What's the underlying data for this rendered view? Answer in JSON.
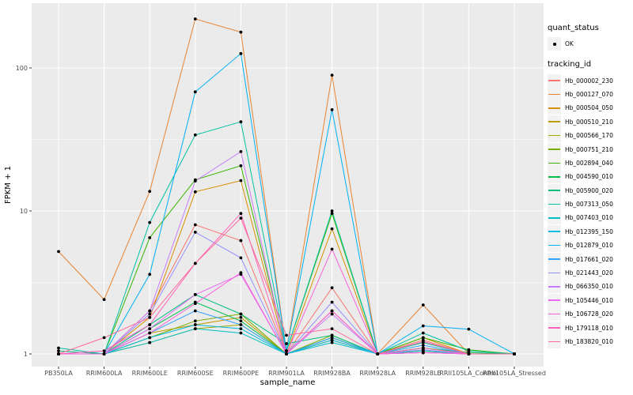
{
  "figure": {
    "background": "#FFFFFF",
    "panel_background": "#EBEBEB",
    "grid_major_color": "#FFFFFF",
    "grid_minor_color": "#FFFFFF",
    "tick_color": "#333333",
    "tick_label_color": "#4D4D4D",
    "axis_title_color": "#000000",
    "point_color": "#000000"
  },
  "legend": {
    "quant_status": {
      "title": "quant_status",
      "items": [
        {
          "label": "OK",
          "marker": "point"
        }
      ]
    },
    "tracking_id": {
      "title": "tracking_id"
    }
  },
  "chart_data": {
    "type": "line",
    "title": "",
    "xlabel": "sample_name",
    "ylabel": "FPKM + 1",
    "y_scale": "log10",
    "y_ticks": [
      1,
      10,
      100
    ],
    "y_tick_labels": [
      "1",
      "10",
      "100"
    ],
    "y_minor": [
      3.162,
      31.62
    ],
    "ylim": [
      0.82,
      285
    ],
    "grid": true,
    "legend_position": "right",
    "marker": "black point (quant_status OK) on every observation",
    "categories": [
      "PB350LA",
      "RRIM600LA",
      "RRIM600LE",
      "RRIM600SE",
      "RRIM600PE",
      "RRIM901LA",
      "RRIM928BA",
      "RRIM928LA",
      "RRIM928LE",
      "RRII105LA_Control",
      "RRII105LA_Stressed"
    ],
    "series": [
      {
        "name": "Hb_000002_230",
        "color": "#F8766D",
        "values": [
          1.0,
          1.0,
          2.0,
          8.0,
          6.2,
          1.0,
          2.9,
          1.0,
          1.25,
          1.0,
          1.0
        ]
      },
      {
        "name": "Hb_000127_070",
        "color": "#EA8331",
        "values": [
          5.2,
          2.4,
          13.7,
          220,
          178,
          1.05,
          89,
          1.0,
          2.2,
          1.0,
          1.0
        ]
      },
      {
        "name": "Hb_000504_050",
        "color": "#D89000",
        "values": [
          1.0,
          1.0,
          1.8,
          13.6,
          16.3,
          1.0,
          7.5,
          1.0,
          1.3,
          1.0,
          1.0
        ]
      },
      {
        "name": "Hb_000510_210",
        "color": "#C09B00",
        "values": [
          1.0,
          1.0,
          1.4,
          1.6,
          1.8,
          1.0,
          1.3,
          1.0,
          1.05,
          1.0,
          1.0
        ]
      },
      {
        "name": "Hb_000566_170",
        "color": "#A3A500",
        "values": [
          1.0,
          1.0,
          1.2,
          1.5,
          1.6,
          1.0,
          1.25,
          1.0,
          1.02,
          1.0,
          1.0
        ]
      },
      {
        "name": "Hb_000751_210",
        "color": "#7CAE00",
        "values": [
          1.0,
          1.0,
          1.3,
          1.7,
          1.9,
          1.0,
          1.35,
          1.0,
          1.05,
          1.0,
          1.0
        ]
      },
      {
        "name": "Hb_002894_040",
        "color": "#39B600",
        "values": [
          1.0,
          1.0,
          6.5,
          16.5,
          20.7,
          1.05,
          9.6,
          1.0,
          1.3,
          1.07,
          1.0
        ]
      },
      {
        "name": "Hb_004590_010",
        "color": "#00BB4E",
        "values": [
          1.0,
          1.0,
          1.5,
          2.3,
          1.7,
          1.0,
          1.3,
          1.0,
          1.1,
          1.02,
          1.0
        ]
      },
      {
        "name": "Hb_005900_020",
        "color": "#00BF7D",
        "values": [
          1.05,
          1.0,
          1.6,
          2.6,
          1.9,
          1.18,
          1.35,
          1.0,
          1.2,
          1.0,
          1.0
        ]
      },
      {
        "name": "Hb_007313_050",
        "color": "#00C1A3",
        "values": [
          1.1,
          1.0,
          8.3,
          34,
          42,
          1.05,
          10,
          1.0,
          1.4,
          1.05,
          1.0
        ]
      },
      {
        "name": "Hb_007403_010",
        "color": "#00BFC4",
        "values": [
          1.0,
          1.0,
          1.2,
          1.5,
          1.4,
          1.0,
          1.2,
          1.0,
          1.05,
          1.0,
          1.0
        ]
      },
      {
        "name": "Hb_012395_150",
        "color": "#00BAE0",
        "values": [
          1.0,
          1.0,
          1.3,
          1.6,
          1.5,
          1.0,
          1.25,
          1.0,
          1.1,
          1.0,
          1.0
        ]
      },
      {
        "name": "Hb_012879_010",
        "color": "#00B0F6",
        "values": [
          1.0,
          1.0,
          3.6,
          68,
          126,
          1.05,
          51,
          1.0,
          1.57,
          1.49,
          1.0
        ]
      },
      {
        "name": "Hb_017661_020",
        "color": "#35A2FF",
        "values": [
          1.0,
          1.0,
          1.4,
          2.0,
          1.6,
          1.0,
          1.3,
          1.0,
          1.15,
          1.0,
          1.0
        ]
      },
      {
        "name": "Hb_021443_020",
        "color": "#9590FF",
        "values": [
          1.0,
          1.0,
          1.9,
          7.1,
          4.7,
          1.0,
          2.3,
          1.0,
          1.07,
          1.0,
          1.0
        ]
      },
      {
        "name": "Hb_066350_010",
        "color": "#C77CFF",
        "values": [
          1.0,
          1.0,
          2.0,
          16.2,
          26,
          1.0,
          1.9,
          1.0,
          1.02,
          1.0,
          1.0
        ]
      },
      {
        "name": "Hb_105446_010",
        "color": "#E76BF3",
        "values": [
          1.0,
          1.0,
          1.5,
          2.6,
          3.6,
          1.0,
          2.0,
          1.0,
          1.02,
          1.0,
          1.0
        ]
      },
      {
        "name": "Hb_106728_020",
        "color": "#FA62DB",
        "values": [
          1.0,
          1.0,
          1.4,
          2.25,
          3.7,
          1.0,
          5.4,
          1.0,
          1.02,
          1.0,
          1.0
        ]
      },
      {
        "name": "Hb_179118_010",
        "color": "#FF62BC",
        "values": [
          1.0,
          1.05,
          1.6,
          4.3,
          9.6,
          1.0,
          2.0,
          1.0,
          1.22,
          1.0,
          1.0
        ]
      },
      {
        "name": "Hb_183820_010",
        "color": "#FF6A98",
        "values": [
          1.0,
          1.3,
          1.8,
          4.3,
          8.9,
          1.35,
          1.5,
          1.0,
          1.1,
          1.0,
          1.0
        ]
      }
    ]
  }
}
